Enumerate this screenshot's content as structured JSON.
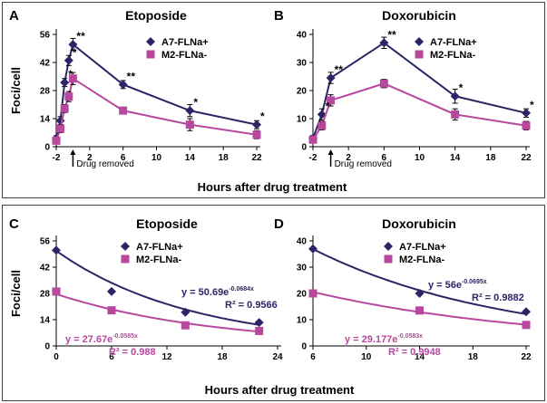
{
  "figure": {
    "xlabel_top": "Hours after drug treatment",
    "xlabel_bottom": "Hours after drug treatment"
  },
  "colors": {
    "a7": "#2b2566",
    "m2": "#b8479e",
    "axis": "#000000"
  },
  "chart_data": [
    {
      "id": "A",
      "letter": "A",
      "title": "Etoposide",
      "type": "line",
      "ylabel": "Foci/cell",
      "xlabel": "",
      "xlim": [
        -2,
        22
      ],
      "ylim": [
        0,
        56
      ],
      "xticks": [
        -2,
        2,
        6,
        10,
        14,
        18,
        22
      ],
      "yticks": [
        0,
        14,
        28,
        42,
        56
      ],
      "annotation": "Drug removed",
      "annotation_x": 0,
      "legend": "top-right",
      "series": [
        {
          "name": "A7-FLNa+",
          "key": "a7",
          "marker": "diamond",
          "x": [
            -2,
            -1.5,
            -1,
            -0.5,
            0,
            6,
            14,
            22
          ],
          "y": [
            4,
            13,
            32,
            43,
            51,
            31,
            18,
            11
          ],
          "err": [
            1.5,
            2,
            2,
            2.5,
            3,
            2,
            3,
            2
          ]
        },
        {
          "name": "M2-FLNa-",
          "key": "m2",
          "marker": "square",
          "x": [
            -2,
            -1.5,
            -1,
            -0.5,
            0,
            6,
            14,
            22
          ],
          "y": [
            3,
            9,
            19,
            25,
            34,
            18,
            11,
            6
          ],
          "err": [
            1.5,
            2,
            2,
            2.5,
            3,
            1.5,
            3,
            2
          ]
        }
      ],
      "stars": [
        {
          "x": -1,
          "y": 32,
          "text": "*"
        },
        {
          "x": -0.5,
          "y": 43,
          "text": "*"
        },
        {
          "x": 0,
          "y": 51,
          "text": "**"
        },
        {
          "x": 6,
          "y": 31,
          "text": "**"
        },
        {
          "x": 14,
          "y": 18,
          "text": "*"
        },
        {
          "x": 22,
          "y": 11,
          "text": "*"
        }
      ]
    },
    {
      "id": "B",
      "letter": "B",
      "title": "Doxorubicin",
      "type": "line",
      "ylabel": "",
      "xlabel": "",
      "xlim": [
        -2,
        22
      ],
      "ylim": [
        0,
        40
      ],
      "xticks": [
        -2,
        2,
        6,
        10,
        14,
        18,
        22
      ],
      "yticks": [
        0,
        10,
        20,
        30,
        40
      ],
      "annotation": "Drug removed",
      "annotation_x": 0,
      "legend": "top-right",
      "series": [
        {
          "name": "A7-FLNa+",
          "key": "a7",
          "marker": "diamond",
          "x": [
            -2,
            -1,
            0,
            6,
            14,
            22
          ],
          "y": [
            3,
            11.5,
            24.5,
            37,
            18,
            12
          ],
          "err": [
            1,
            2,
            2,
            2,
            2.5,
            1.5
          ]
        },
        {
          "name": "M2-FLNa-",
          "key": "m2",
          "marker": "square",
          "x": [
            -2,
            -1,
            0,
            6,
            14,
            22
          ],
          "y": [
            2.5,
            7.5,
            16.5,
            22.5,
            11.5,
            7.5
          ],
          "err": [
            1,
            1.5,
            2,
            1.5,
            2,
            1.5
          ]
        }
      ],
      "stars": [
        {
          "x": -1,
          "y": 11.5,
          "text": "*"
        },
        {
          "x": 0,
          "y": 24.5,
          "text": "**"
        },
        {
          "x": 6,
          "y": 37,
          "text": "**"
        },
        {
          "x": 14,
          "y": 18,
          "text": "*"
        },
        {
          "x": 22,
          "y": 12,
          "text": "*"
        }
      ]
    },
    {
      "id": "C",
      "letter": "C",
      "title": "Etoposide",
      "type": "scatter",
      "ylabel": "Foci/cell",
      "xlabel": "",
      "xlim": [
        0,
        24
      ],
      "ylim": [
        0,
        56
      ],
      "xticks": [
        0,
        6,
        12,
        18,
        24
      ],
      "yticks": [
        0,
        14,
        28,
        42,
        56
      ],
      "legend": "top-right",
      "series": [
        {
          "name": "A7-FLNa+",
          "key": "a7",
          "marker": "diamond",
          "x": [
            0,
            6,
            14,
            22
          ],
          "y": [
            51,
            29,
            18,
            12.5
          ],
          "fit": {
            "a": 50.69,
            "b": -0.0684
          },
          "equation": "y = 50.69e",
          "exponent": "-0.0684x",
          "r2": "R² = 0.9566"
        },
        {
          "name": "M2-FLNa-",
          "key": "m2",
          "marker": "square",
          "x": [
            0,
            6,
            14,
            22
          ],
          "y": [
            29,
            19,
            11,
            8
          ],
          "fit": {
            "a": 27.67,
            "b": -0.0585
          },
          "equation": "y = 27.67e",
          "exponent": "-0.0585x",
          "r2": "R² = 0.988"
        }
      ]
    },
    {
      "id": "D",
      "letter": "D",
      "title": "Doxorubicin",
      "type": "scatter",
      "ylabel": "",
      "xlabel": "",
      "xlim": [
        6,
        22
      ],
      "ylim": [
        0,
        40
      ],
      "xticks": [
        6,
        10,
        14,
        18,
        22
      ],
      "yticks": [
        0,
        10,
        20,
        30,
        40
      ],
      "legend": "top-right",
      "series": [
        {
          "name": "A7-FLNa+",
          "key": "a7",
          "marker": "diamond",
          "x": [
            6,
            14,
            22
          ],
          "y": [
            37,
            20,
            13
          ],
          "fit": {
            "a": 56,
            "b": -0.0695
          },
          "equation": "y = 56e",
          "exponent": "-0.0695x",
          "r2": "R² = 0.9882"
        },
        {
          "name": "M2-FLNa-",
          "key": "m2",
          "marker": "square",
          "x": [
            6,
            14,
            22
          ],
          "y": [
            20,
            13.5,
            8
          ],
          "fit": {
            "a": 29.177,
            "b": -0.0583
          },
          "equation": "y = 29.177e",
          "exponent": "-0.0583x",
          "r2": "R² = 0.9948"
        }
      ]
    }
  ]
}
